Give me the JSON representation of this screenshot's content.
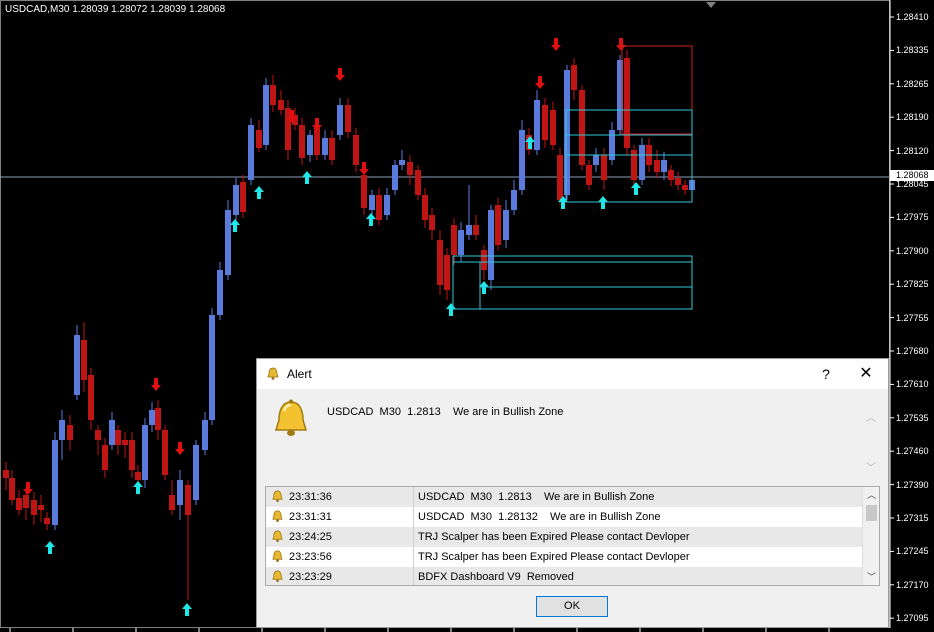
{
  "chart": {
    "title": "USDCAD,M30  1.28039 1.28072 1.28039 1.28068",
    "current_price": "1.28068",
    "price_labels": [
      "1.28410",
      "1.28335",
      "1.28265",
      "1.28190",
      "1.28120",
      "1.28045",
      "1.27975",
      "1.27900",
      "1.27825",
      "1.27755",
      "1.27680",
      "1.27610",
      "1.27535",
      "1.27460",
      "1.27390",
      "1.27315",
      "1.27245",
      "1.27170",
      "1.27095"
    ],
    "colors": {
      "background": "#000000",
      "bull": "#5b7bdc",
      "bear": "#c01515",
      "up_arrow": "#1fe8e8",
      "down_arrow": "#e01010",
      "grid_axis": "#808080",
      "zone_red": "#d02020",
      "zone_cyan": "#30c8d8"
    }
  },
  "dialog": {
    "title": "Alert",
    "help_label": "?",
    "close_label": "✕",
    "message": "USDCAD  M30  1.2813    We are in Bullish Zone",
    "history": [
      {
        "time": "23:31:36",
        "message": "USDCAD  M30  1.2813    We are in Bullish Zone"
      },
      {
        "time": "23:31:31",
        "message": "USDCAD  M30  1.28132    We are in Bullish Zone"
      },
      {
        "time": "23:24:25",
        "message": "TRJ Scalper has been Expired Please contact Devloper"
      },
      {
        "time": "23:23:56",
        "message": "TRJ Scalper has been Expired Please contact Devloper"
      },
      {
        "time": "23:23:29",
        "message": "BDFX Dashboard V9  Removed"
      }
    ],
    "ok_label": "OK",
    "icon": "bell-icon"
  }
}
